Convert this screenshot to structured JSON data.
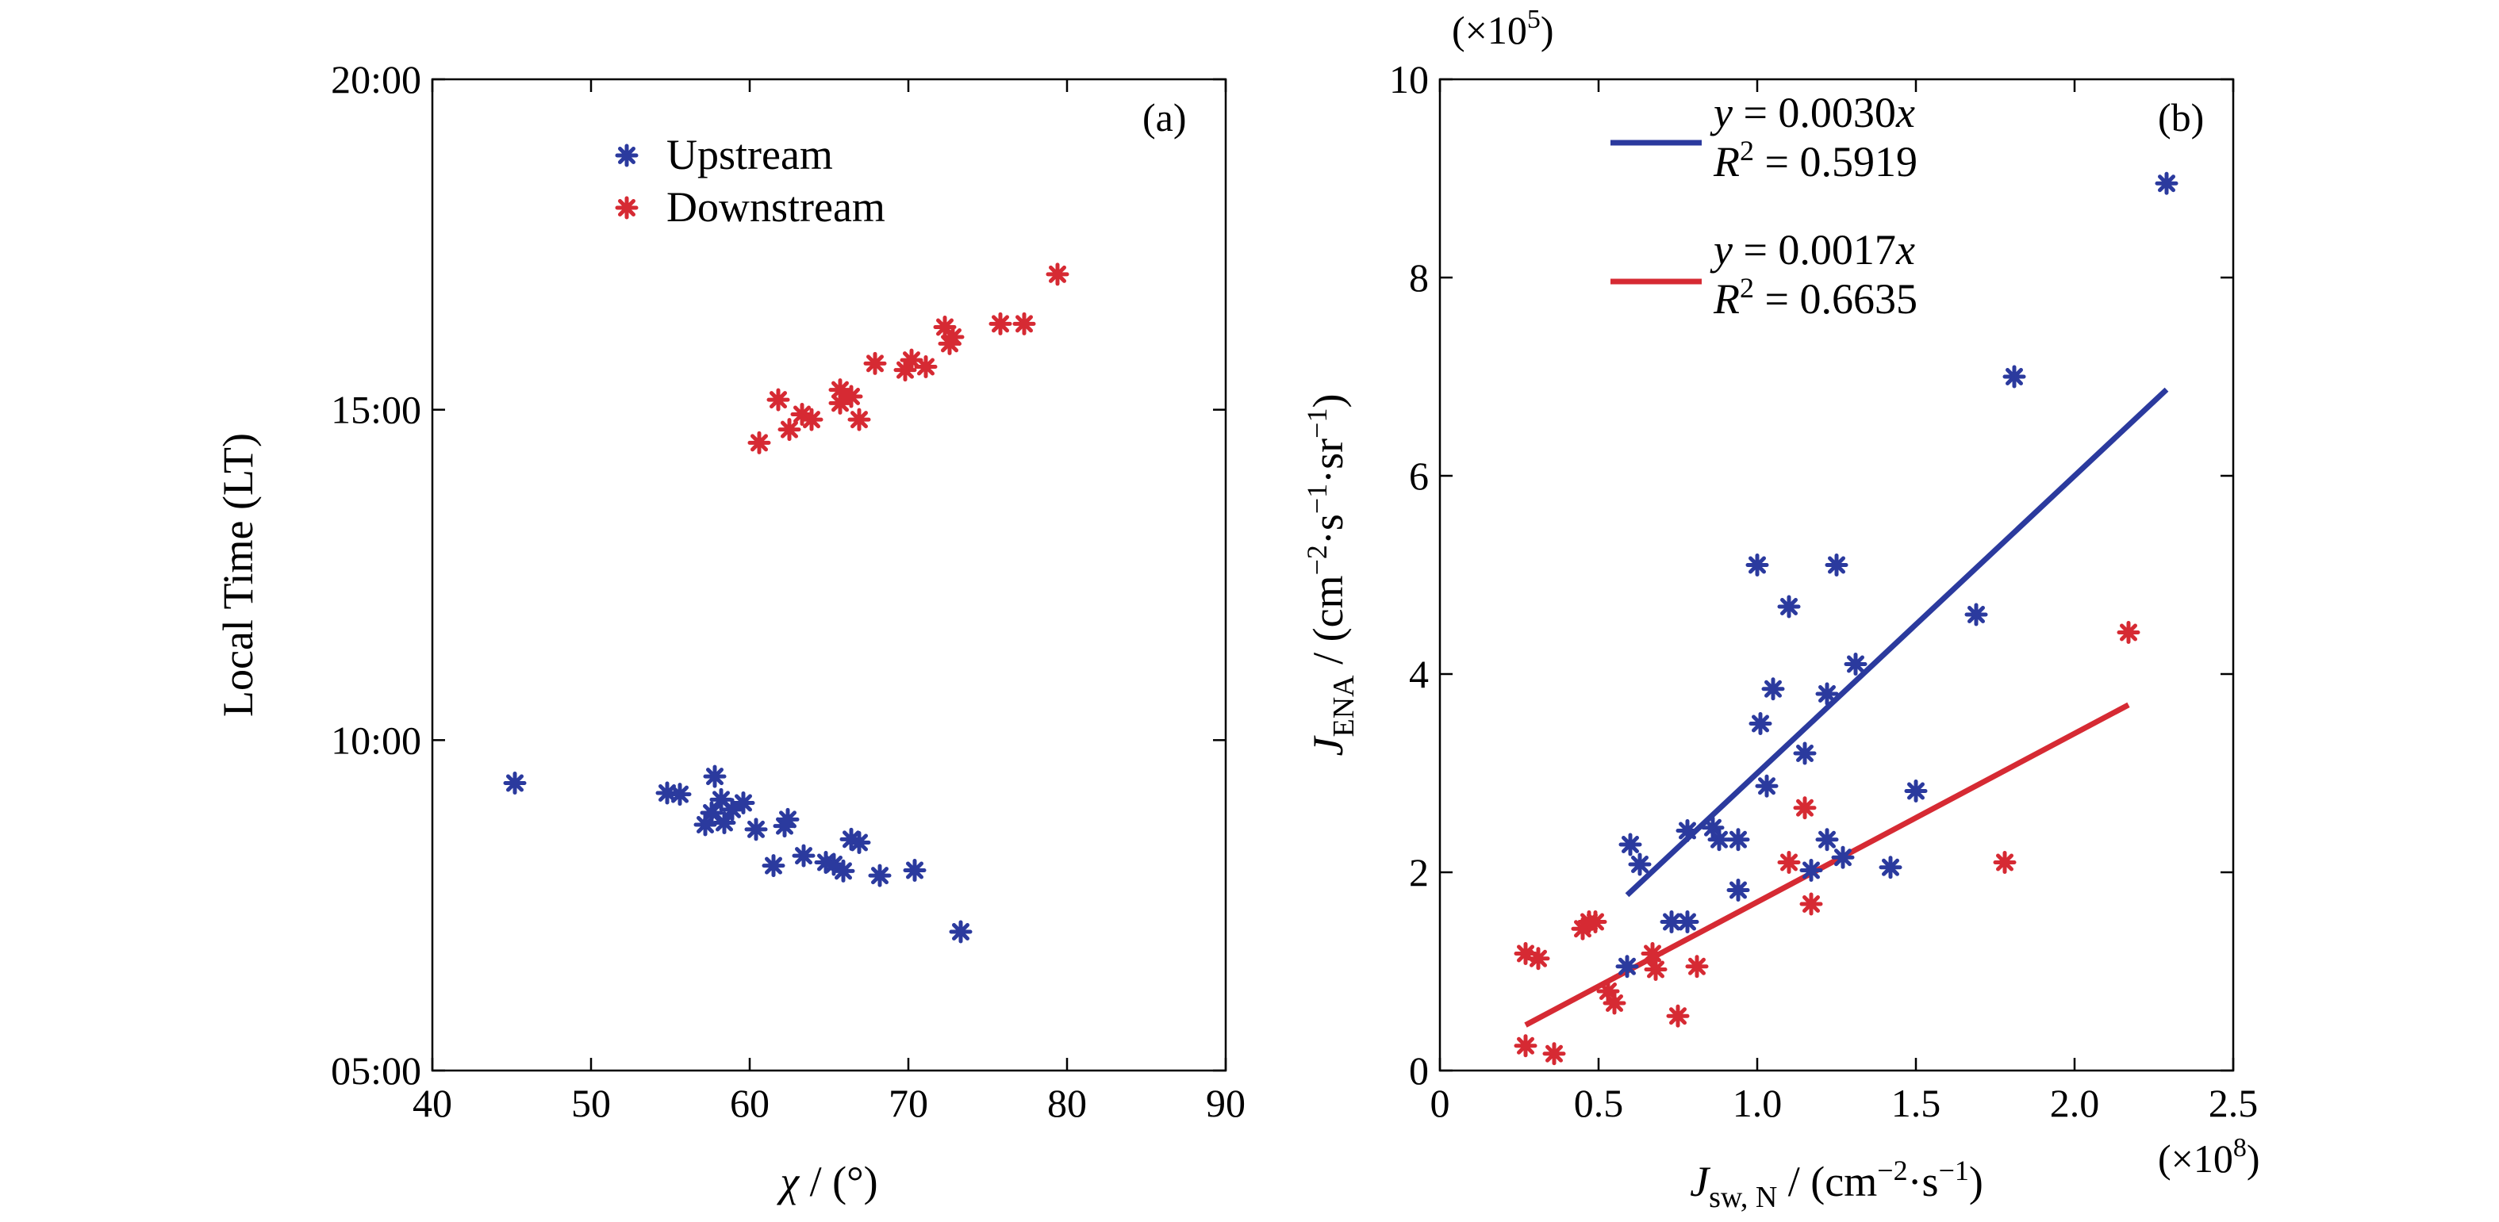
{
  "chart_data": [
    {
      "type": "scatter",
      "panel_label": "(a)",
      "xlabel": {
        "main": "χ",
        "unit": " / (°)"
      },
      "ylabel": "Local Time (LT)",
      "xlim": [
        40,
        90
      ],
      "ylim": [
        5,
        20
      ],
      "xticks": [
        40,
        50,
        60,
        70,
        80,
        90
      ],
      "yticks": [
        5,
        10,
        15,
        20
      ],
      "ytick_labels": [
        "05:00",
        "10:00",
        "15:00",
        "20:00"
      ],
      "legend": {
        "position": "top-center"
      },
      "series": [
        {
          "name": "Upstream",
          "color": "#2b3a9e",
          "marker": "asterisk",
          "points": [
            [
              45.2,
              9.35
            ],
            [
              54.8,
              9.2
            ],
            [
              55.6,
              9.18
            ],
            [
              57.2,
              8.72
            ],
            [
              57.8,
              9.45
            ],
            [
              57.6,
              8.9
            ],
            [
              58.2,
              9.1
            ],
            [
              58.4,
              8.75
            ],
            [
              58.9,
              8.95
            ],
            [
              59.6,
              9.05
            ],
            [
              60.4,
              8.65
            ],
            [
              61.5,
              8.1
            ],
            [
              62.2,
              8.7
            ],
            [
              62.4,
              8.8
            ],
            [
              63.4,
              8.25
            ],
            [
              64.8,
              8.15
            ],
            [
              65.3,
              8.12
            ],
            [
              65.9,
              8.02
            ],
            [
              66.4,
              8.5
            ],
            [
              66.9,
              8.45
            ],
            [
              68.2,
              7.95
            ],
            [
              70.4,
              8.03
            ],
            [
              73.3,
              7.1
            ]
          ]
        },
        {
          "name": "Downstream",
          "color": "#d62a33",
          "marker": "asterisk",
          "points": [
            [
              60.6,
              14.5
            ],
            [
              61.8,
              15.15
            ],
            [
              62.5,
              14.7
            ],
            [
              63.3,
              14.93
            ],
            [
              63.9,
              14.85
            ],
            [
              65.7,
              15.1
            ],
            [
              65.7,
              15.3
            ],
            [
              66.4,
              15.2
            ],
            [
              66.9,
              14.85
            ],
            [
              67.9,
              15.7
            ],
            [
              69.8,
              15.6
            ],
            [
              70.2,
              15.75
            ],
            [
              71.1,
              15.65
            ],
            [
              72.3,
              16.25
            ],
            [
              72.6,
              16.0
            ],
            [
              72.8,
              16.1
            ],
            [
              75.8,
              16.3
            ],
            [
              77.3,
              16.3
            ],
            [
              79.4,
              17.05
            ]
          ]
        }
      ]
    },
    {
      "type": "scatter",
      "panel_label": "(b)",
      "xlabel": {
        "main": "J",
        "sub": "sw, N",
        "unit": " / (cm",
        "exp1": "−2",
        "mid": "·s",
        "exp2": "−1",
        "end": ")"
      },
      "ylabel": {
        "main": "J",
        "sub": "ENA",
        "unit": " / (cm",
        "exp1": "−2",
        "mid1": "·s",
        "exp2": "−1",
        "mid2": "·sr",
        "exp3": "−1",
        "end": ")"
      },
      "x_scale_label": {
        "pre": "(×10",
        "exp": "8",
        "post": ")"
      },
      "y_scale_label": {
        "pre": "(×10",
        "exp": "5",
        "post": ")"
      },
      "xlim": [
        0,
        2.5
      ],
      "ylim": [
        0,
        10
      ],
      "xticks": [
        0,
        0.5,
        1.0,
        1.5,
        2.0,
        2.5
      ],
      "xtick_labels": [
        "0",
        "0.5",
        "1.0",
        "1.5",
        "2.0",
        "2.5"
      ],
      "yticks": [
        0,
        2,
        4,
        6,
        8,
        10
      ],
      "ytick_labels": [
        "0",
        "2",
        "4",
        "6",
        "8",
        "10"
      ],
      "legend": {
        "position": "top-center"
      },
      "series": [
        {
          "color": "#2b3a9e",
          "marker": "asterisk",
          "points": [
            [
              0.59,
              1.05
            ],
            [
              0.6,
              2.28
            ],
            [
              0.63,
              2.08
            ],
            [
              0.73,
              1.5
            ],
            [
              0.78,
              1.5
            ],
            [
              0.78,
              2.42
            ],
            [
              0.86,
              2.45
            ],
            [
              0.88,
              2.33
            ],
            [
              0.94,
              2.33
            ],
            [
              0.94,
              1.82
            ],
            [
              1.0,
              5.1
            ],
            [
              1.01,
              3.5
            ],
            [
              1.03,
              2.87
            ],
            [
              1.05,
              3.85
            ],
            [
              1.1,
              4.68
            ],
            [
              1.15,
              3.2
            ],
            [
              1.17,
              2.02
            ],
            [
              1.22,
              2.33
            ],
            [
              1.22,
              3.8
            ],
            [
              1.25,
              5.1
            ],
            [
              1.27,
              2.15
            ],
            [
              1.31,
              4.1
            ],
            [
              1.42,
              2.05
            ],
            [
              1.5,
              2.82
            ],
            [
              1.69,
              4.6
            ],
            [
              1.81,
              7.0
            ],
            [
              2.29,
              8.95
            ]
          ],
          "fit": {
            "slope": 0.003,
            "x_range": [
              0.59,
              2.29
            ]
          },
          "legend_text": {
            "eq_pre": "y",
            "eq_post": " = 0.0030",
            "eq_var": "x",
            "r_pre": "R",
            "r_exp": "2",
            "r_post": " = 0.5919"
          }
        },
        {
          "color": "#d62a33",
          "marker": "asterisk",
          "points": [
            [
              0.27,
              0.25
            ],
            [
              0.27,
              1.18
            ],
            [
              0.31,
              1.13
            ],
            [
              0.36,
              0.17
            ],
            [
              0.45,
              1.43
            ],
            [
              0.47,
              1.5
            ],
            [
              0.49,
              1.5
            ],
            [
              0.53,
              0.8
            ],
            [
              0.55,
              0.68
            ],
            [
              0.67,
              1.18
            ],
            [
              0.68,
              1.02
            ],
            [
              0.75,
              0.55
            ],
            [
              0.81,
              1.05
            ],
            [
              1.1,
              2.1
            ],
            [
              1.15,
              2.65
            ],
            [
              1.17,
              1.68
            ],
            [
              1.78,
              2.1
            ],
            [
              2.17,
              4.42
            ]
          ],
          "fit": {
            "slope": 0.0017,
            "x_range": [
              0.27,
              2.17
            ]
          },
          "legend_text": {
            "eq_pre": "y",
            "eq_post": " = 0.0017",
            "eq_var": "x",
            "r_pre": "R",
            "r_exp": "2",
            "r_post": " = 0.6635"
          }
        }
      ]
    }
  ]
}
